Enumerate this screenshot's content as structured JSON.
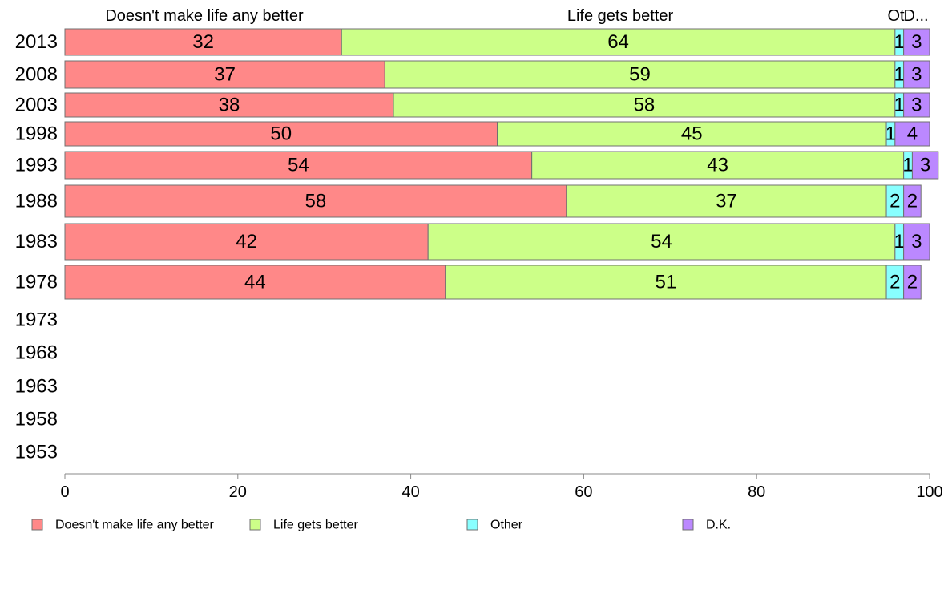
{
  "chart_data": {
    "type": "bar",
    "orientation": "horizontal",
    "stacked": true,
    "categories": [
      "2013",
      "2008",
      "2003",
      "1998",
      "1993",
      "1988",
      "1983",
      "1978",
      "1973",
      "1968",
      "1963",
      "1958",
      "1953"
    ],
    "series": [
      {
        "name": "Doesn't make life any better",
        "color": "#ff8888",
        "values": [
          32,
          37,
          38,
          50,
          54,
          58,
          42,
          44,
          null,
          null,
          null,
          null,
          null
        ],
        "labels": [
          "32",
          "37",
          "38",
          "50",
          "54",
          "58",
          "42",
          "44",
          "",
          "",
          "",
          "",
          ""
        ]
      },
      {
        "name": "Life gets better",
        "color": "#ccff88",
        "values": [
          64,
          59,
          58,
          45,
          43,
          37,
          54,
          51,
          null,
          null,
          null,
          null,
          null
        ],
        "labels": [
          "64",
          "59",
          "58",
          "45",
          "43",
          "37",
          "54",
          "51",
          "",
          "",
          "",
          "",
          ""
        ]
      },
      {
        "name": "Other",
        "color": "#88ffff",
        "values": [
          1,
          1,
          1,
          1,
          1,
          2,
          1,
          2,
          null,
          null,
          null,
          null,
          null
        ],
        "labels": [
          "1",
          "1",
          "1",
          "1",
          "1",
          "2",
          "1",
          "2",
          "",
          "",
          "",
          "",
          ""
        ]
      },
      {
        "name": "D.K.",
        "color": "#bb88ff",
        "values": [
          3,
          3,
          3,
          4,
          3,
          2,
          3,
          2,
          null,
          null,
          null,
          null,
          null
        ],
        "labels": [
          "3",
          "3",
          "3",
          "4",
          "3",
          "2",
          "3",
          "2",
          "",
          "",
          "",
          "",
          ""
        ]
      }
    ],
    "column_headers": [
      "Doesn't make life any better",
      "Life gets better",
      "Ot",
      "D..."
    ],
    "xlim": [
      0,
      100
    ],
    "xticks": [
      "0",
      "20",
      "40",
      "60",
      "80",
      "100"
    ],
    "grid": false,
    "legend_position": "bottom"
  }
}
